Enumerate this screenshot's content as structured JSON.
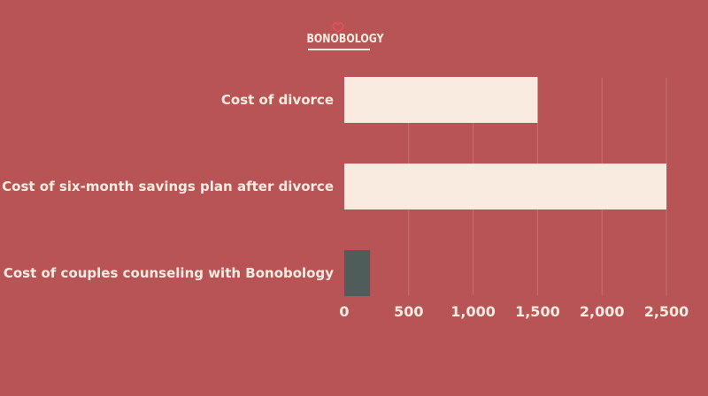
{
  "brand": {
    "logo_text": "BONOBOLOGY",
    "logo_icon": "heart-icon",
    "text_color": "#f8ece0",
    "heart_color": "#e8505b"
  },
  "colors": {
    "background": "#b85456",
    "bar_light": "#f9ebdf",
    "bar_dark": "#4e5c5a",
    "grid": "#c97070"
  },
  "chart_data": {
    "type": "bar",
    "orientation": "horizontal",
    "categories": [
      "Cost of divorce",
      "Cost of six-month savings plan after divorce",
      "Cost of couples counseling with Bonobology"
    ],
    "values": [
      1500,
      2500,
      200
    ],
    "bar_colors": [
      "#f9ebdf",
      "#f9ebdf",
      "#4e5c5a"
    ],
    "title": "",
    "xlabel": "",
    "ylabel": "",
    "xlim": [
      0,
      2500
    ],
    "xticks": [
      0,
      500,
      1000,
      1500,
      2000,
      2500
    ],
    "xtick_labels": [
      "0",
      "500",
      "1,000",
      "1,500",
      "2,000",
      "2,500"
    ],
    "grid": "vertical",
    "legend": "none"
  }
}
